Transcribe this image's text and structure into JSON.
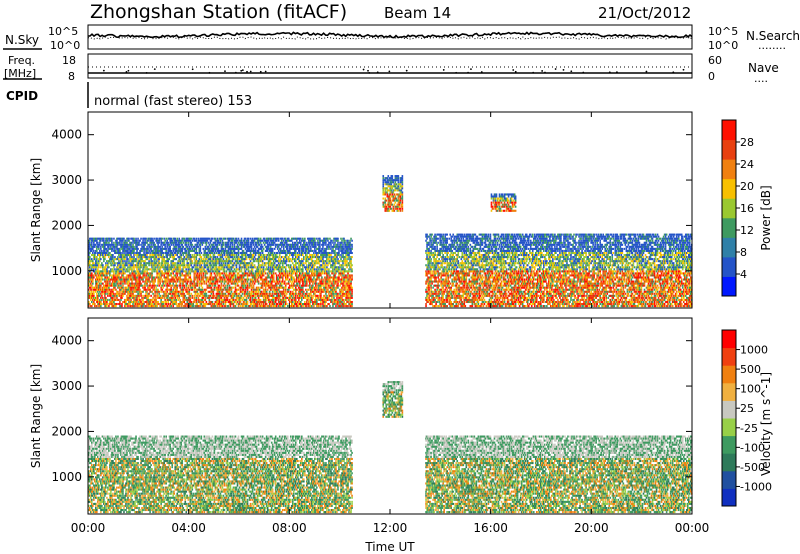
{
  "header": {
    "station": "Zhongshan Station (fitACF)",
    "beam": "Beam 14",
    "date": "21/Oct/2012"
  },
  "noise_panel": {
    "left_label": "N.Sky",
    "right_label": "N.Search",
    "left_ticks": [
      "10^5",
      "10^0"
    ],
    "right_ticks": [
      "10^5",
      "10^0"
    ],
    "right_dots": "........"
  },
  "freq_panel": {
    "left_label_1": "Freq.",
    "left_label_2": "[MHz]",
    "right_label": "Nave",
    "left_ticks": [
      "18",
      "8"
    ],
    "right_ticks": [
      "60",
      "0"
    ],
    "right_dots": "...."
  },
  "cpid": {
    "label": "CPID",
    "text": "normal (fast stereo) 153"
  },
  "x_axis": {
    "title": "Time UT",
    "ticks": [
      "00:00",
      "04:00",
      "08:00",
      "12:00",
      "16:00",
      "20:00",
      "00:00"
    ]
  },
  "colors": {
    "white": "#ffffff",
    "blue": "#2f55b8",
    "green": "#3e8e5c",
    "orange": "#f09020",
    "red": "#e81010",
    "yellow": "#d8b428",
    "gray": "#c8c8c0"
  },
  "chart_data": [
    {
      "type": "heatmap",
      "title": "Power",
      "ylabel": "Slant Range [km]",
      "ylim": [
        180,
        4500
      ],
      "yticks": [
        "1000",
        "2000",
        "3000",
        "4000"
      ],
      "xlim_hours": [
        0,
        24
      ],
      "colorbar": {
        "label": "Power [dB]",
        "ticks": [
          "4",
          "8",
          "12",
          "16",
          "20",
          "24",
          "28"
        ],
        "colors": [
          "#0018ff",
          "#2454c8",
          "#2f80a8",
          "#3e9a60",
          "#9ac830",
          "#f8c000",
          "#f08010",
          "#e84010",
          "#ff1000"
        ]
      },
      "regions": [
        {
          "t0": 0.0,
          "t1": 10.5,
          "r0": 200,
          "r1": 1700,
          "level": "mixed"
        },
        {
          "t0": 11.7,
          "t1": 12.5,
          "r0": 2300,
          "r1": 3100,
          "level": "mixed"
        },
        {
          "t0": 13.4,
          "t1": 24.0,
          "r0": 200,
          "r1": 1800,
          "level": "mixed"
        },
        {
          "t0": 16.0,
          "t1": 17.0,
          "r0": 2300,
          "r1": 2700,
          "level": "mixed"
        }
      ]
    },
    {
      "type": "heatmap",
      "title": "Velocity",
      "ylabel": "Slant Range [km]",
      "ylim": [
        180,
        4500
      ],
      "yticks": [
        "1000",
        "2000",
        "3000",
        "4000"
      ],
      "xlim_hours": [
        0,
        24
      ],
      "colorbar": {
        "label": "Velocity [m s^-1]",
        "ticks": [
          "1000",
          "500",
          "100",
          "25",
          "-25",
          "-100",
          "-500",
          "-1000"
        ],
        "colors": [
          "#1030c0",
          "#2050a0",
          "#2e7a5a",
          "#3e9a60",
          "#98d048",
          "#c8c8c0",
          "#f0b040",
          "#f08010",
          "#f04010",
          "#ff0000"
        ]
      },
      "regions": [
        {
          "t0": 0.0,
          "t1": 10.5,
          "r0": 200,
          "r1": 1900,
          "level": "mixed"
        },
        {
          "t0": 11.7,
          "t1": 12.5,
          "r0": 2300,
          "r1": 3100,
          "level": "mixed"
        },
        {
          "t0": 13.4,
          "t1": 24.0,
          "r0": 200,
          "r1": 1900,
          "level": "mixed"
        }
      ]
    }
  ]
}
